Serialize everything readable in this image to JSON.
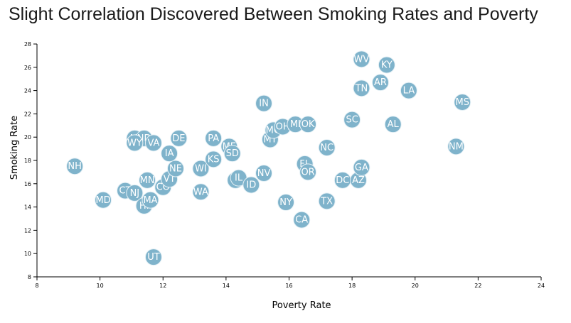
{
  "chart_data": {
    "type": "scatter",
    "title": "Slight Correlation Discovered Between Smoking Rates and Poverty",
    "xlabel": "Poverty Rate",
    "ylabel": "Smoking Rate",
    "xlim": [
      8,
      24
    ],
    "ylim": [
      8,
      28
    ],
    "xticks": [
      8,
      10,
      12,
      14,
      16,
      18,
      20,
      22,
      24
    ],
    "yticks": [
      8,
      10,
      12,
      14,
      16,
      18,
      20,
      22,
      24,
      26,
      28
    ],
    "grid": false,
    "marker_color": "#7fb3cb",
    "label_color": "#ffffff",
    "points": [
      {
        "label": "NH",
        "x": 9.2,
        "y": 17.5
      },
      {
        "label": "MD",
        "x": 10.1,
        "y": 14.6
      },
      {
        "label": "CT",
        "x": 10.8,
        "y": 15.4
      },
      {
        "label": "NJ",
        "x": 11.1,
        "y": 15.2
      },
      {
        "label": "AK",
        "x": 11.1,
        "y": 19.9
      },
      {
        "label": "ND",
        "x": 11.4,
        "y": 19.9
      },
      {
        "label": "WY",
        "x": 11.1,
        "y": 19.5
      },
      {
        "label": "HI",
        "x": 11.4,
        "y": 14.1
      },
      {
        "label": "MA",
        "x": 11.6,
        "y": 14.6
      },
      {
        "label": "MN",
        "x": 11.5,
        "y": 16.3
      },
      {
        "label": "VA",
        "x": 11.7,
        "y": 19.5
      },
      {
        "label": "UT",
        "x": 11.7,
        "y": 9.7
      },
      {
        "label": "CO",
        "x": 12.0,
        "y": 15.7
      },
      {
        "label": "VT",
        "x": 12.2,
        "y": 16.4
      },
      {
        "label": "IA",
        "x": 12.2,
        "y": 18.6
      },
      {
        "label": "NE",
        "x": 12.4,
        "y": 17.3
      },
      {
        "label": "DE",
        "x": 12.5,
        "y": 19.9
      },
      {
        "label": "WA",
        "x": 13.2,
        "y": 15.3
      },
      {
        "label": "WI",
        "x": 13.2,
        "y": 17.3
      },
      {
        "label": "KS",
        "x": 13.6,
        "y": 18.1
      },
      {
        "label": "PA",
        "x": 13.6,
        "y": 19.9
      },
      {
        "label": "ME",
        "x": 14.1,
        "y": 19.2
      },
      {
        "label": "SD",
        "x": 14.2,
        "y": 18.6
      },
      {
        "label": "RI",
        "x": 14.3,
        "y": 16.3
      },
      {
        "label": "IL",
        "x": 14.4,
        "y": 16.5
      },
      {
        "label": "ID",
        "x": 14.8,
        "y": 15.9
      },
      {
        "label": "NV",
        "x": 15.2,
        "y": 16.9
      },
      {
        "label": "IN",
        "x": 15.2,
        "y": 22.9
      },
      {
        "label": "MT",
        "x": 15.4,
        "y": 19.8
      },
      {
        "label": "MO",
        "x": 15.5,
        "y": 20.6
      },
      {
        "label": "OH",
        "x": 15.8,
        "y": 20.9
      },
      {
        "label": "NY",
        "x": 15.9,
        "y": 14.4
      },
      {
        "label": "MI",
        "x": 16.2,
        "y": 21.1
      },
      {
        "label": "CA",
        "x": 16.4,
        "y": 12.9
      },
      {
        "label": "FL",
        "x": 16.5,
        "y": 17.7
      },
      {
        "label": "OR",
        "x": 16.6,
        "y": 17.0
      },
      {
        "label": "OK",
        "x": 16.6,
        "y": 21.1
      },
      {
        "label": "NC",
        "x": 17.2,
        "y": 19.1
      },
      {
        "label": "TX",
        "x": 17.2,
        "y": 14.5
      },
      {
        "label": "DC",
        "x": 17.7,
        "y": 16.3
      },
      {
        "label": "SC",
        "x": 18.0,
        "y": 21.5
      },
      {
        "label": "AZ",
        "x": 18.2,
        "y": 16.3
      },
      {
        "label": "GA",
        "x": 18.3,
        "y": 17.4
      },
      {
        "label": "TN",
        "x": 18.3,
        "y": 24.2
      },
      {
        "label": "WV",
        "x": 18.3,
        "y": 26.7
      },
      {
        "label": "AR",
        "x": 18.9,
        "y": 24.7
      },
      {
        "label": "KY",
        "x": 19.1,
        "y": 26.2
      },
      {
        "label": "AL",
        "x": 19.3,
        "y": 21.1
      },
      {
        "label": "LA",
        "x": 19.8,
        "y": 24.0
      },
      {
        "label": "NM",
        "x": 21.3,
        "y": 19.2
      },
      {
        "label": "MS",
        "x": 21.5,
        "y": 23.0
      }
    ]
  }
}
